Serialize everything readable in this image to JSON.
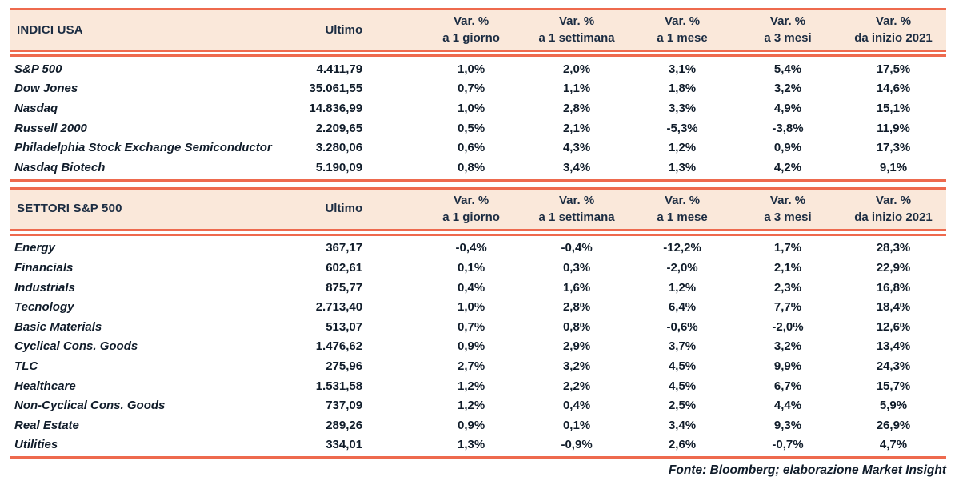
{
  "colors": {
    "accent": "#EE6A4E",
    "header_bg": "#FAE8DA",
    "header_text": "#1B2C42",
    "body_text": "#101C2A"
  },
  "footer": "Fonte: Bloomberg; elaborazione Market Insight",
  "tables": [
    {
      "title": "INDICI USA",
      "ultimo_label": "Ultimo",
      "var_headers": [
        {
          "line1": "Var. %",
          "line2": "a 1 giorno"
        },
        {
          "line1": "Var. %",
          "line2": "a 1 settimana"
        },
        {
          "line1": "Var. %",
          "line2": "a 1 mese"
        },
        {
          "line1": "Var. %",
          "line2": "a 3 mesi"
        },
        {
          "line1": "Var. %",
          "line2": "da inizio 2021"
        }
      ],
      "rows": [
        {
          "name": "S&P 500",
          "ultimo": "4.411,79",
          "vars": [
            "1,0%",
            "2,0%",
            "3,1%",
            "5,4%",
            "17,5%"
          ]
        },
        {
          "name": "Dow Jones",
          "ultimo": "35.061,55",
          "vars": [
            "0,7%",
            "1,1%",
            "1,8%",
            "3,2%",
            "14,6%"
          ]
        },
        {
          "name": "Nasdaq",
          "ultimo": "14.836,99",
          "vars": [
            "1,0%",
            "2,8%",
            "3,3%",
            "4,9%",
            "15,1%"
          ]
        },
        {
          "name": "Russell 2000",
          "ultimo": "2.209,65",
          "vars": [
            "0,5%",
            "2,1%",
            "-5,3%",
            "-3,8%",
            "11,9%"
          ]
        },
        {
          "name": "Philadelphia Stock Exchange Semiconductor",
          "ultimo": "3.280,06",
          "vars": [
            "0,6%",
            "4,3%",
            "1,2%",
            "0,9%",
            "17,3%"
          ]
        },
        {
          "name": "Nasdaq Biotech",
          "ultimo": "5.190,09",
          "vars": [
            "0,8%",
            "3,4%",
            "1,3%",
            "4,2%",
            "9,1%"
          ]
        }
      ]
    },
    {
      "title": "SETTORI S&P 500",
      "ultimo_label": "Ultimo",
      "var_headers": [
        {
          "line1": "Var. %",
          "line2": "a 1 giorno"
        },
        {
          "line1": "Var. %",
          "line2": "a 1 settimana"
        },
        {
          "line1": "Var. %",
          "line2": "a 1 mese"
        },
        {
          "line1": "Var. %",
          "line2": "a 3 mesi"
        },
        {
          "line1": "Var. %",
          "line2": "da inizio 2021"
        }
      ],
      "rows": [
        {
          "name": "Energy",
          "ultimo": "367,17",
          "vars": [
            "-0,4%",
            "-0,4%",
            "-12,2%",
            "1,7%",
            "28,3%"
          ]
        },
        {
          "name": "Financials",
          "ultimo": "602,61",
          "vars": [
            "0,1%",
            "0,3%",
            "-2,0%",
            "2,1%",
            "22,9%"
          ]
        },
        {
          "name": "Industrials",
          "ultimo": "875,77",
          "vars": [
            "0,4%",
            "1,6%",
            "1,2%",
            "2,3%",
            "16,8%"
          ]
        },
        {
          "name": "Tecnology",
          "ultimo": "2.713,40",
          "vars": [
            "1,0%",
            "2,8%",
            "6,4%",
            "7,7%",
            "18,4%"
          ]
        },
        {
          "name": "Basic Materials",
          "ultimo": "513,07",
          "vars": [
            "0,7%",
            "0,8%",
            "-0,6%",
            "-2,0%",
            "12,6%"
          ]
        },
        {
          "name": "Cyclical Cons. Goods",
          "ultimo": "1.476,62",
          "vars": [
            "0,9%",
            "2,9%",
            "3,7%",
            "3,2%",
            "13,4%"
          ]
        },
        {
          "name": "TLC",
          "ultimo": "275,96",
          "vars": [
            "2,7%",
            "3,2%",
            "4,5%",
            "9,9%",
            "24,3%"
          ]
        },
        {
          "name": "Healthcare",
          "ultimo": "1.531,58",
          "vars": [
            "1,2%",
            "2,2%",
            "4,5%",
            "6,7%",
            "15,7%"
          ]
        },
        {
          "name": "Non-Cyclical Cons. Goods",
          "ultimo": "737,09",
          "vars": [
            "1,2%",
            "0,4%",
            "2,5%",
            "4,4%",
            "5,9%"
          ]
        },
        {
          "name": "Real Estate",
          "ultimo": "289,26",
          "vars": [
            "0,9%",
            "0,1%",
            "3,4%",
            "9,3%",
            "26,9%"
          ]
        },
        {
          "name": "Utilities",
          "ultimo": "334,01",
          "vars": [
            "1,3%",
            "-0,9%",
            "2,6%",
            "-0,7%",
            "4,7%"
          ]
        }
      ]
    }
  ],
  "chart_data": [
    {
      "type": "table",
      "title": "INDICI USA",
      "columns": [
        "",
        "Ultimo",
        "Var. % a 1 giorno",
        "Var. % a 1 settimana",
        "Var. % a 1 mese",
        "Var. % a 3 mesi",
        "Var. % da inizio 2021"
      ],
      "rows": [
        [
          "S&P 500",
          "4.411,79",
          "1,0%",
          "2,0%",
          "3,1%",
          "5,4%",
          "17,5%"
        ],
        [
          "Dow Jones",
          "35.061,55",
          "0,7%",
          "1,1%",
          "1,8%",
          "3,2%",
          "14,6%"
        ],
        [
          "Nasdaq",
          "14.836,99",
          "1,0%",
          "2,8%",
          "3,3%",
          "4,9%",
          "15,1%"
        ],
        [
          "Russell 2000",
          "2.209,65",
          "0,5%",
          "2,1%",
          "-5,3%",
          "-3,8%",
          "11,9%"
        ],
        [
          "Philadelphia Stock Exchange Semiconductor",
          "3.280,06",
          "0,6%",
          "4,3%",
          "1,2%",
          "0,9%",
          "17,3%"
        ],
        [
          "Nasdaq Biotech",
          "5.190,09",
          "0,8%",
          "3,4%",
          "1,3%",
          "4,2%",
          "9,1%"
        ]
      ]
    },
    {
      "type": "table",
      "title": "SETTORI S&P 500",
      "columns": [
        "",
        "Ultimo",
        "Var. % a 1 giorno",
        "Var. % a 1 settimana",
        "Var. % a 1 mese",
        "Var. % a 3 mesi",
        "Var. % da inizio 2021"
      ],
      "rows": [
        [
          "Energy",
          "367,17",
          "-0,4%",
          "-0,4%",
          "-12,2%",
          "1,7%",
          "28,3%"
        ],
        [
          "Financials",
          "602,61",
          "0,1%",
          "0,3%",
          "-2,0%",
          "2,1%",
          "22,9%"
        ],
        [
          "Industrials",
          "875,77",
          "0,4%",
          "1,6%",
          "1,2%",
          "2,3%",
          "16,8%"
        ],
        [
          "Tecnology",
          "2.713,40",
          "1,0%",
          "2,8%",
          "6,4%",
          "7,7%",
          "18,4%"
        ],
        [
          "Basic Materials",
          "513,07",
          "0,7%",
          "0,8%",
          "-0,6%",
          "-2,0%",
          "12,6%"
        ],
        [
          "Cyclical Cons. Goods",
          "1.476,62",
          "0,9%",
          "2,9%",
          "3,7%",
          "3,2%",
          "13,4%"
        ],
        [
          "TLC",
          "275,96",
          "2,7%",
          "3,2%",
          "4,5%",
          "9,9%",
          "24,3%"
        ],
        [
          "Healthcare",
          "1.531,58",
          "1,2%",
          "2,2%",
          "4,5%",
          "6,7%",
          "15,7%"
        ],
        [
          "Non-Cyclical Cons. Goods",
          "737,09",
          "1,2%",
          "0,4%",
          "2,5%",
          "4,4%",
          "5,9%"
        ],
        [
          "Real Estate",
          "289,26",
          "0,9%",
          "0,1%",
          "3,4%",
          "9,3%",
          "26,9%"
        ],
        [
          "Utilities",
          "334,01",
          "1,3%",
          "-0,9%",
          "2,6%",
          "-0,7%",
          "4,7%"
        ]
      ]
    }
  ]
}
